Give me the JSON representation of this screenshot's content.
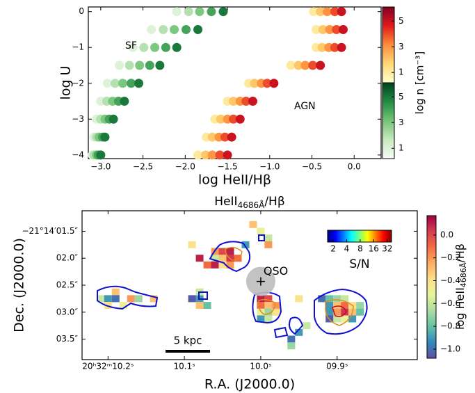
{
  "chart_data": [
    {
      "type": "scatter",
      "xlabel": "log HeII/Hβ",
      "ylabel": "log U",
      "xlim": [
        -3.147,
        0.319
      ],
      "ylim": [
        -4.1,
        0.13
      ],
      "xticks": [
        {
          "value": -3,
          "label": "−3.0"
        },
        {
          "value": -2.5,
          "label": "−2.5"
        },
        {
          "value": -2,
          "label": "−2.0"
        },
        {
          "value": -1.5,
          "label": "−1.5"
        },
        {
          "value": -1,
          "label": "−1.0"
        },
        {
          "value": -0.5,
          "label": "−0.5"
        },
        {
          "value": 0,
          "label": "0.0"
        }
      ],
      "yticks": [
        0,
        {
          "value": -1,
          "label": "−1"
        },
        {
          "value": -2,
          "label": "−2"
        },
        {
          "value": -3,
          "label": "−3"
        },
        {
          "value": -4,
          "label": "−4"
        }
      ],
      "series": [
        {
          "name": "AGN",
          "color": "#a31a1a",
          "colormap": "YlOrRd",
          "x": [
            -0.48,
            -0.45,
            -0.45,
            -0.75,
            -1.25,
            -1.5,
            -1.65,
            -1.75,
            -1.85,
            -0.4,
            -0.37,
            -0.38,
            -0.66,
            -1.18,
            -1.43,
            -1.58,
            -1.68,
            -1.76,
            -0.32,
            -0.29,
            -0.3,
            -0.58,
            -1.1,
            -1.35,
            -1.5,
            -1.6,
            -1.68,
            -0.23,
            -0.21,
            -0.23,
            -0.49,
            -1.03,
            -1.28,
            -1.43,
            -1.53,
            -1.59,
            -0.15,
            -0.13,
            -0.15,
            -0.4,
            -0.95,
            -1.2,
            -1.35,
            -1.45,
            -1.5
          ],
          "y": [
            0,
            -0.5,
            -1,
            -1.5,
            -2,
            -2.5,
            -3,
            -3.5,
            -4,
            0,
            -0.5,
            -1,
            -1.5,
            -2,
            -2.5,
            -3,
            -3.5,
            -4,
            0,
            -0.5,
            -1,
            -1.5,
            -2,
            -2.5,
            -3,
            -3.5,
            -4,
            0,
            -0.5,
            -1,
            -1.5,
            -2,
            -2.5,
            -3,
            -3.5,
            -4,
            0,
            -0.5,
            -1,
            -1.5,
            -2,
            -2.5,
            -3,
            -3.5,
            -4
          ],
          "z": [
            1,
            1,
            1,
            1,
            1,
            1,
            1,
            1,
            1,
            2,
            2,
            2,
            2,
            2,
            2,
            2,
            2,
            2,
            3,
            3,
            3,
            3,
            3,
            3,
            3,
            3,
            3,
            4,
            4,
            4,
            4,
            4,
            4,
            4,
            4,
            4,
            5,
            5,
            5,
            5,
            5,
            5,
            5,
            5,
            5
          ]
        },
        {
          "name": "SF",
          "color": "#2e8b2e",
          "colormap": "Greens",
          "x": [
            -2.1,
            -2.4,
            -2.62,
            -2.78,
            -2.92,
            -3.0,
            -3.05,
            -3.08,
            -3.1,
            -1.96,
            -2.26,
            -2.49,
            -2.66,
            -2.83,
            -2.93,
            -3.0,
            -3.05,
            -3.08,
            -1.83,
            -2.13,
            -2.36,
            -2.54,
            -2.74,
            -2.86,
            -2.95,
            -3.02,
            -3.05,
            -1.69,
            -1.99,
            -2.23,
            -2.42,
            -2.64,
            -2.79,
            -2.9,
            -2.98,
            -3.03,
            -1.55,
            -1.85,
            -2.1,
            -2.3,
            -2.55,
            -2.72,
            -2.85,
            -2.95,
            -3.0
          ],
          "y": [
            0,
            -0.5,
            -1,
            -1.5,
            -2,
            -2.5,
            -3,
            -3.5,
            -4,
            0,
            -0.5,
            -1,
            -1.5,
            -2,
            -2.5,
            -3,
            -3.5,
            -4,
            0,
            -0.5,
            -1,
            -1.5,
            -2,
            -2.5,
            -3,
            -3.5,
            -4,
            0,
            -0.5,
            -1,
            -1.5,
            -2,
            -2.5,
            -3,
            -3.5,
            -4,
            0,
            -0.5,
            -1,
            -1.5,
            -2,
            -2.5,
            -3,
            -3.5,
            -4
          ],
          "z": [
            1,
            1,
            1,
            1,
            1,
            1,
            1,
            1,
            1,
            2,
            2,
            2,
            2,
            2,
            2,
            2,
            2,
            2,
            3,
            3,
            3,
            3,
            3,
            3,
            3,
            3,
            3,
            4,
            4,
            4,
            4,
            4,
            4,
            4,
            4,
            4,
            5,
            5,
            5,
            5,
            5,
            5,
            5,
            5,
            5
          ]
        }
      ],
      "colorbar_label": "log n [cm⁻³]",
      "colorbars": [
        {
          "colormap": "YlOrRd",
          "lim": [
            0.2,
            6.1
          ],
          "ticks": [
            1,
            3,
            5
          ]
        },
        {
          "colormap": "Greens",
          "lim": [
            0.2,
            6.1
          ],
          "ticks": [
            1,
            3,
            5
          ]
        }
      ]
    },
    {
      "type": "heatmap",
      "title": [
        "HeII",
        "4686Å",
        "/Hβ"
      ],
      "xlabel": "R.A. (J2000.0)",
      "ylabel": "Dec. (J2000.0)",
      "xlim": [
        10.234,
        9.795
      ],
      "ylim": [
        3.88,
        1.12
      ],
      "xticks": [
        {
          "value": 10.2,
          "label": "20ʰ32ᵐ10.2ˢ"
        },
        {
          "value": 10.1,
          "label": "10.1ˢ"
        },
        {
          "value": 10.0,
          "label": "10.0ˢ"
        },
        {
          "value": 9.9,
          "label": "09.9ˢ"
        }
      ],
      "yticks": [
        {
          "value": 1.5,
          "label": "−21°14′01.5″"
        },
        {
          "value": 2.0,
          "label": "02.0″"
        },
        {
          "value": 2.5,
          "label": "02.5″"
        },
        {
          "value": 3.0,
          "label": "03.0″"
        },
        {
          "value": 3.5,
          "label": "03.5″"
        }
      ],
      "cells": {
        "x": [
          10.21,
          10.2,
          10.19,
          10.19,
          10.18,
          10.17,
          10.16,
          10.2,
          10.14,
          10.09,
          10.08,
          10.08,
          10.07,
          10.08,
          10.06,
          10.05,
          10.04,
          10.05,
          10.04,
          10.03,
          10.06,
          10.07,
          10.06,
          10.05,
          10.04,
          10.08,
          10.09,
          10.0,
          10.01,
          9.99,
          10.02,
          9.99,
          10.0,
          9.99,
          10.0,
          9.99,
          9.98,
          10.0,
          9.99,
          9.98,
          10.0,
          9.99,
          9.95,
          9.96,
          9.94,
          9.96,
          9.95,
          9.92,
          9.91,
          9.9,
          9.89,
          9.91,
          9.9,
          9.89,
          9.88,
          9.87,
          9.9,
          9.89,
          9.88,
          9.87,
          9.91,
          9.9,
          9.89,
          9.88,
          9.91
        ],
        "y": [
          2.75,
          2.75,
          2.625,
          2.75,
          2.875,
          2.75,
          2.75,
          2.875,
          2.75,
          2.75,
          2.75,
          2.625,
          2.875,
          2.875,
          1.875,
          1.875,
          1.875,
          2.0,
          2.0,
          2.0,
          2.0,
          2.125,
          2.125,
          2.125,
          2.125,
          2.0,
          1.75,
          1.5,
          1.375,
          1.625,
          1.75,
          1.75,
          2.75,
          2.75,
          2.875,
          2.875,
          2.875,
          3.0,
          3.0,
          3.0,
          3.125,
          3.125,
          3.375,
          3.5,
          3.25,
          3.625,
          2.75,
          2.75,
          2.75,
          2.75,
          2.75,
          2.875,
          2.875,
          2.875,
          2.875,
          2.875,
          3.0,
          3.0,
          3.0,
          3.0,
          3.0,
          3.125,
          3.125,
          3.125,
          3.125
        ],
        "values": [
          -0.6,
          -0.9,
          -0.3,
          -1.0,
          -0.5,
          -0.2,
          -0.7,
          -0.4,
          -0.3,
          -1.05,
          -0.9,
          -0.6,
          -0.8,
          -0.3,
          -0.2,
          0.0,
          0.1,
          -0.3,
          0.05,
          -0.1,
          -0.6,
          -0.1,
          0.1,
          -0.4,
          -0.2,
          0.1,
          -0.4,
          -0.5,
          -0.3,
          -0.6,
          -0.9,
          -0.2,
          0.1,
          0.0,
          -0.1,
          -0.3,
          -0.2,
          -0.5,
          -0.7,
          -0.4,
          -0.9,
          -0.6,
          -0.9,
          -1.0,
          -0.6,
          -0.7,
          -0.4,
          -1.0,
          -0.8,
          -0.7,
          -0.6,
          -0.9,
          -0.3,
          -0.1,
          -0.4,
          -0.7,
          -0.2,
          0.05,
          -0.3,
          -0.8,
          -0.9,
          -0.6,
          -0.5,
          -0.9,
          -1.05
        ]
      },
      "colorbar": {
        "label": [
          "log HeII",
          "4686Å",
          "/Hβ"
        ],
        "colormap": "Spectral_r",
        "lim": [
          -1.08,
          0.17
        ],
        "ticks": [
          {
            "value": 0,
            "label": "0.0"
          },
          {
            "value": -0.2,
            "label": "−0.2"
          },
          {
            "value": -0.4,
            "label": "−0.4"
          },
          {
            "value": -0.6,
            "label": "−0.6"
          },
          {
            "value": -0.8,
            "label": "−0.8"
          },
          {
            "value": -1.0,
            "label": "−1.0"
          }
        ]
      },
      "sn_colorbar": {
        "label": "S/N",
        "colormap": "jet",
        "lim": [
          1.5,
          40
        ],
        "log": true,
        "ticks": [
          2,
          4,
          8,
          16,
          32
        ]
      },
      "qso": {
        "label": "QSO",
        "x": 10.0,
        "y": 2.43
      },
      "scalebar": {
        "label": "5 kpc"
      }
    }
  ]
}
